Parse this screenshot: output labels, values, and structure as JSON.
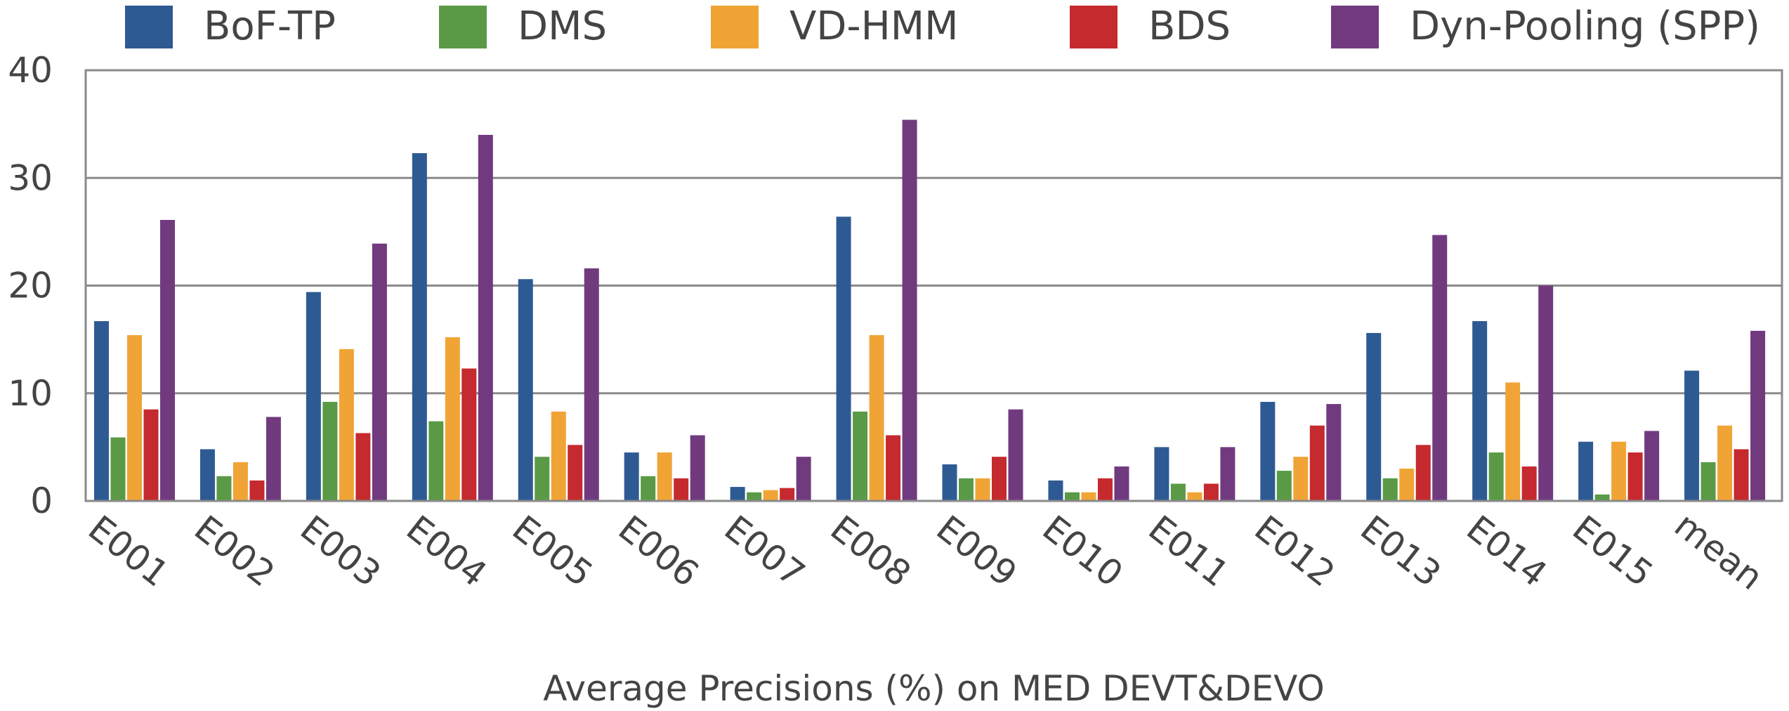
{
  "chart_data": {
    "type": "bar",
    "title": "",
    "xlabel": "Average Precisions (%) on MED DEVT&DEVO",
    "ylabel": "",
    "ylim": [
      0,
      40
    ],
    "yticks": [
      "0",
      "10",
      "20",
      "30",
      "40"
    ],
    "grid": true,
    "legend_position": "top",
    "categories": [
      "E001",
      "E002",
      "E003",
      "E004",
      "E005",
      "E006",
      "E007",
      "E008",
      "E009",
      "E010",
      "E011",
      "E012",
      "E013",
      "E014",
      "E015",
      "mean"
    ],
    "series": [
      {
        "name": "BoF-TP",
        "color": "#2e5a94",
        "values": [
          16.7,
          4.8,
          19.4,
          32.3,
          20.6,
          4.5,
          1.3,
          26.4,
          3.4,
          1.9,
          5.0,
          9.2,
          15.6,
          16.7,
          5.5,
          12.1
        ]
      },
      {
        "name": "DMS",
        "color": "#5a9a46",
        "values": [
          5.9,
          2.3,
          9.2,
          7.4,
          4.1,
          2.3,
          0.8,
          8.3,
          2.1,
          0.8,
          1.6,
          2.8,
          2.1,
          4.5,
          0.6,
          3.6
        ]
      },
      {
        "name": "VD-HMM",
        "color": "#f0a436",
        "values": [
          15.4,
          3.6,
          14.1,
          15.2,
          8.3,
          4.5,
          1.0,
          15.4,
          2.1,
          0.8,
          0.8,
          4.1,
          3.0,
          11.0,
          5.5,
          7.0
        ]
      },
      {
        "name": "BDS",
        "color": "#c52a2e",
        "values": [
          8.5,
          1.9,
          6.3,
          12.3,
          5.2,
          2.1,
          1.2,
          6.1,
          4.1,
          2.1,
          1.6,
          7.0,
          5.2,
          3.2,
          4.5,
          4.8
        ]
      },
      {
        "name": "Dyn-Pooling (SPP)",
        "color": "#713a7f",
        "values": [
          26.1,
          7.8,
          23.9,
          34.0,
          21.6,
          6.1,
          4.1,
          35.4,
          8.5,
          3.2,
          5.0,
          9.0,
          24.7,
          20.0,
          6.5,
          15.8
        ]
      }
    ]
  }
}
